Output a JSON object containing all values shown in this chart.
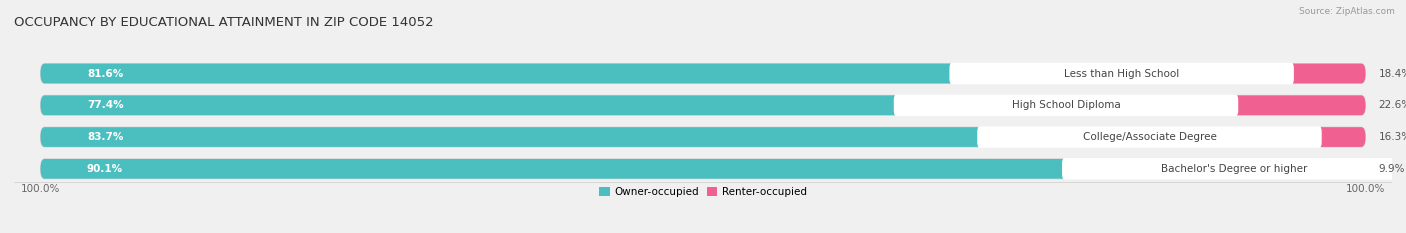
{
  "title": "OCCUPANCY BY EDUCATIONAL ATTAINMENT IN ZIP CODE 14052",
  "source": "Source: ZipAtlas.com",
  "categories": [
    "Less than High School",
    "High School Diploma",
    "College/Associate Degree",
    "Bachelor's Degree or higher"
  ],
  "owner_values": [
    81.6,
    77.4,
    83.7,
    90.1
  ],
  "renter_values": [
    18.4,
    22.6,
    16.3,
    9.9
  ],
  "owner_color": "#4bbfc0",
  "renter_color": "#f06090",
  "renter_color_light": "#f8afc8",
  "bg_color": "#f0f0f0",
  "bar_bg_color": "#e0e0e0",
  "bar_bg_border": "#d0d0d0",
  "title_fontsize": 9.5,
  "label_fontsize": 7.5,
  "tick_fontsize": 7.5,
  "source_fontsize": 6.5,
  "axis_label_left": "100.0%",
  "axis_label_right": "100.0%",
  "legend_owner": "Owner-occupied",
  "legend_renter": "Renter-occupied"
}
